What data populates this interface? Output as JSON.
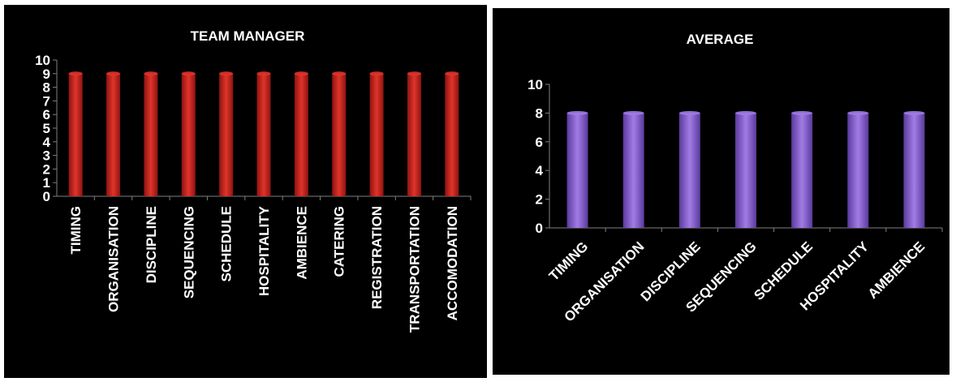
{
  "chart_data": [
    {
      "type": "bar",
      "title": "TEAM MANAGER",
      "categories": [
        "TIMING",
        "ORGANISATION",
        "DISCIPLINE",
        "SEQUENCING",
        "SCHEDULE",
        "HOSPITALITY",
        "AMBIENCE",
        "CATERING",
        "REGISTRATION",
        "TRANSPORTATION",
        "ACCOMODATION"
      ],
      "values": [
        9,
        9,
        9,
        9,
        9,
        9,
        9,
        9,
        9,
        9,
        9
      ],
      "ylim": [
        0,
        10
      ],
      "yticks": [
        "0",
        "1",
        "2",
        "3",
        "4",
        "5",
        "6",
        "7",
        "8",
        "9",
        "10"
      ],
      "xlabel": "",
      "ylabel": "",
      "bar_color": "#e0342b",
      "bar_color_dark": "#8e1410",
      "grid": false
    },
    {
      "type": "bar",
      "title": "AVERAGE",
      "categories": [
        "TIMING",
        "ORGANISATION",
        "DISCIPLINE",
        "SEQUENCING",
        "SCHEDULE",
        "HOSPITALITY",
        "AMBIENCE"
      ],
      "values": [
        8,
        8,
        8,
        8,
        8,
        8,
        8
      ],
      "ylim": [
        0,
        10
      ],
      "yticks": [
        "0",
        "2",
        "4",
        "6",
        "8",
        "10"
      ],
      "xlabel": "",
      "ylabel": "",
      "bar_color": "#a27ce6",
      "bar_color_dark": "#5a3a9c",
      "grid": false
    }
  ]
}
